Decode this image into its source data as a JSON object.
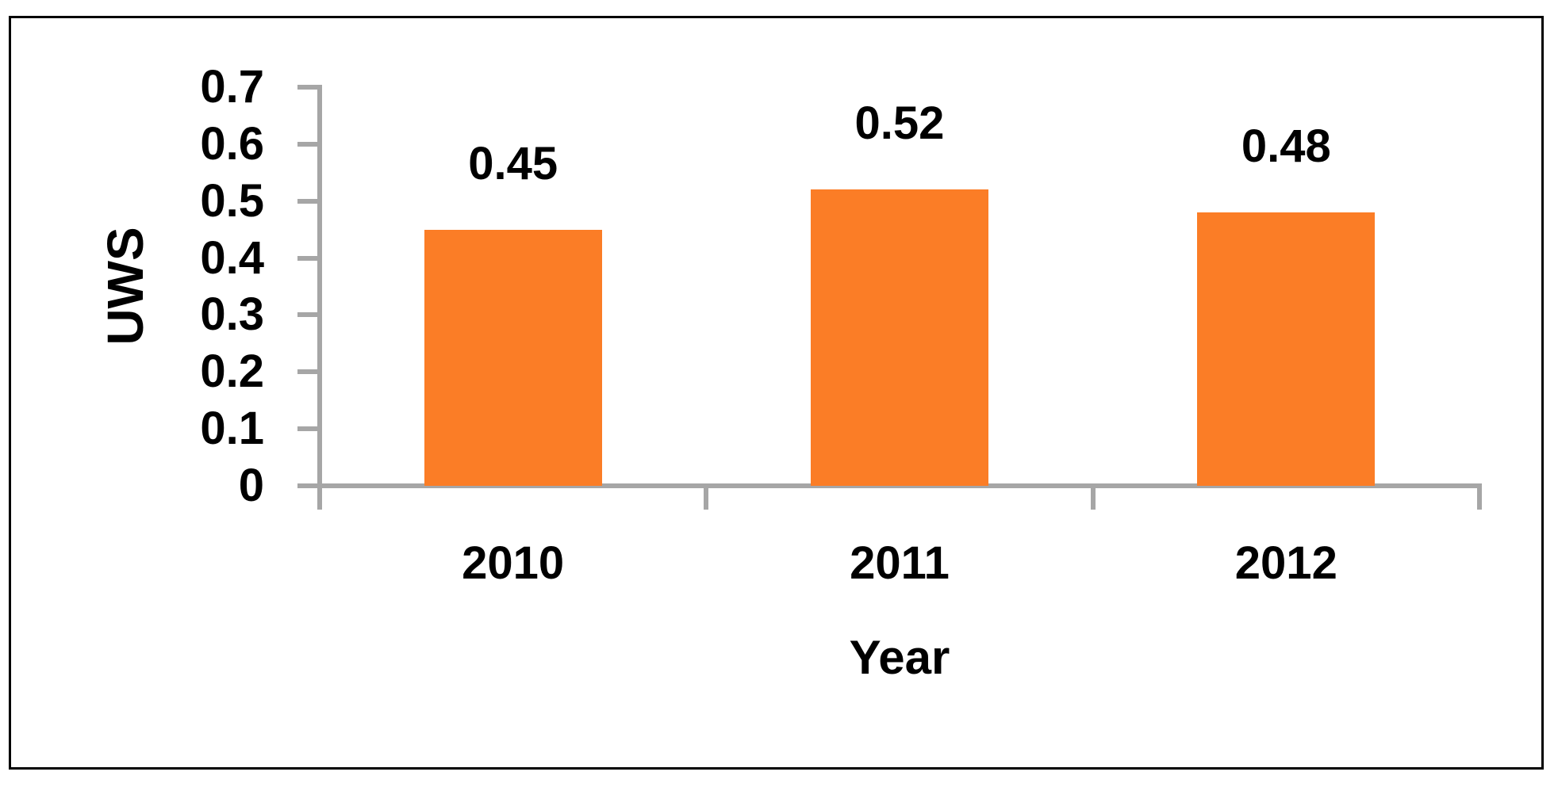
{
  "chart_data": {
    "type": "bar",
    "categories": [
      "2010",
      "2011",
      "2012"
    ],
    "values": [
      0.45,
      0.52,
      0.48
    ],
    "value_labels": [
      "0.45",
      "0.52",
      "0.48"
    ],
    "title": "",
    "xlabel": "Year",
    "ylabel": "UWS",
    "ylim": [
      0,
      0.7
    ],
    "yticks": [
      {
        "label": "0",
        "value": 0.0
      },
      {
        "label": "0.1",
        "value": 0.1
      },
      {
        "label": "0.2",
        "value": 0.2
      },
      {
        "label": "0.3",
        "value": 0.3
      },
      {
        "label": "0.4",
        "value": 0.4
      },
      {
        "label": "0.5",
        "value": 0.5
      },
      {
        "label": "0.6",
        "value": 0.6
      },
      {
        "label": "0.7",
        "value": 0.7
      }
    ],
    "grid": false,
    "legend": null,
    "colors": {
      "bar": "#FB7D26",
      "axis": "#A6A6A6",
      "text": "#000000",
      "frame_border": "#000000",
      "background": "#FFFFFF"
    }
  }
}
